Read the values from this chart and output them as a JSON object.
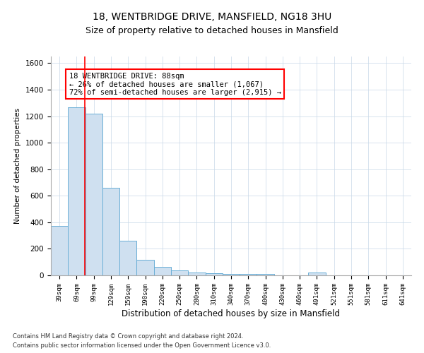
{
  "title_line1": "18, WENTBRIDGE DRIVE, MANSFIELD, NG18 3HU",
  "title_line2": "Size of property relative to detached houses in Mansfield",
  "xlabel": "Distribution of detached houses by size in Mansfield",
  "ylabel": "Number of detached properties",
  "categories": [
    "39sqm",
    "69sqm",
    "99sqm",
    "129sqm",
    "159sqm",
    "190sqm",
    "220sqm",
    "250sqm",
    "280sqm",
    "310sqm",
    "340sqm",
    "370sqm",
    "400sqm",
    "430sqm",
    "460sqm",
    "491sqm",
    "521sqm",
    "551sqm",
    "581sqm",
    "611sqm",
    "641sqm"
  ],
  "values": [
    370,
    1265,
    1220,
    660,
    260,
    115,
    65,
    35,
    22,
    15,
    13,
    10,
    8,
    0,
    0,
    20,
    0,
    0,
    0,
    0,
    0
  ],
  "bar_color": "#cfe0f0",
  "bar_edge_color": "#6aaed6",
  "red_line_x": 1.47,
  "annotation_text": "18 WENTBRIDGE DRIVE: 88sqm\n← 26% of detached houses are smaller (1,067)\n72% of semi-detached houses are larger (2,915) →",
  "annotation_box_color": "white",
  "annotation_box_edge_color": "red",
  "ylim": [
    0,
    1650
  ],
  "yticks": [
    0,
    200,
    400,
    600,
    800,
    1000,
    1200,
    1400,
    1600
  ],
  "grid_color": "#c8d8e8",
  "footer_line1": "Contains HM Land Registry data © Crown copyright and database right 2024.",
  "footer_line2": "Contains public sector information licensed under the Open Government Licence v3.0.",
  "title_fontsize": 10,
  "subtitle_fontsize": 9,
  "bar_width": 1.0,
  "annot_fontsize": 7.5
}
